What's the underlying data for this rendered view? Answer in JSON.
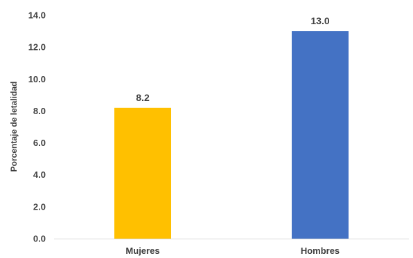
{
  "chart_data": {
    "type": "bar",
    "categories": [
      "Mujeres",
      "Hombres"
    ],
    "values": [
      8.2,
      13.0
    ],
    "value_labels": [
      "8.2",
      "13.0"
    ],
    "colors": [
      "#FFC000",
      "#4472C4"
    ],
    "ylabel": "Porcentaje de letalidad",
    "ylim": [
      0,
      14
    ],
    "yticks": [
      "0.0",
      "2.0",
      "4.0",
      "6.0",
      "8.0",
      "10.0",
      "12.0",
      "14.0"
    ],
    "grid": false,
    "legend": "none"
  }
}
